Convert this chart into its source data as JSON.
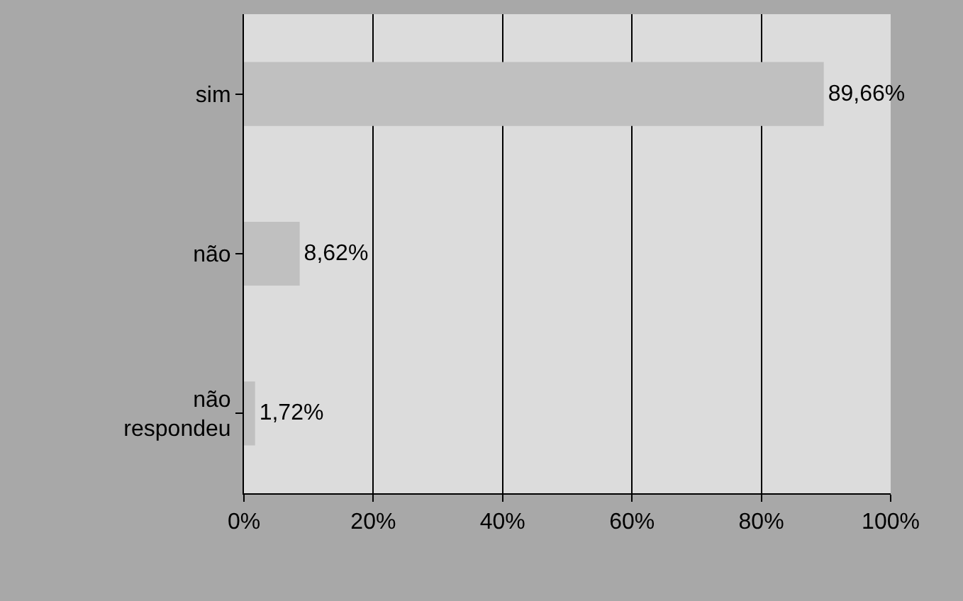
{
  "chart_data": {
    "type": "bar",
    "orientation": "horizontal",
    "categories": [
      "sim",
      "não",
      "não respondeu"
    ],
    "values": [
      89.66,
      8.62,
      1.72
    ],
    "value_labels": [
      "89,66%",
      "8,62%",
      "1,72%"
    ],
    "color": "#c0c0c0",
    "xlim": [
      0,
      100
    ],
    "xticks": [
      {
        "value": 0,
        "label": "0%"
      },
      {
        "value": 20,
        "label": "20%"
      },
      {
        "value": 40,
        "label": "40%"
      },
      {
        "value": 60,
        "label": "60%"
      },
      {
        "value": 80,
        "label": "80%"
      },
      {
        "value": 100,
        "label": "100%"
      }
    ],
    "grid": "x",
    "legend": false
  }
}
